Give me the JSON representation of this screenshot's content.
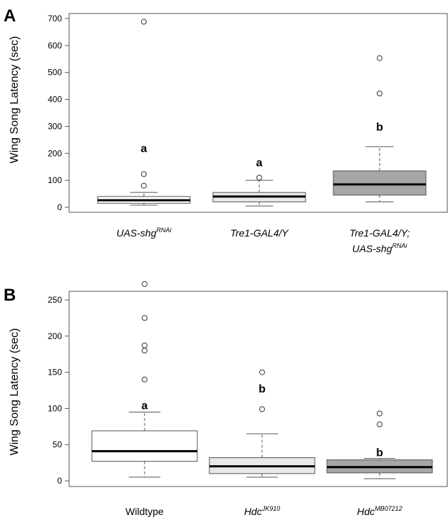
{
  "chart_data": [
    {
      "panel": "A",
      "type": "box",
      "ylabel": "Wing Song Latency (sec)",
      "ylim": [
        0,
        700
      ],
      "yticks": [
        0,
        100,
        200,
        300,
        400,
        500,
        600,
        700
      ],
      "groups": [
        {
          "label_lines": [
            [
              {
                "t": "UAS-shg",
                "sup": "RNAi"
              }
            ]
          ],
          "min": 8,
          "q1": 15,
          "median": 26,
          "q3": 40,
          "max": 55,
          "outliers": [
            80,
            123,
            688
          ],
          "fill": "#ffffff",
          "sig": "a",
          "sig_y": 220
        },
        {
          "label_lines": [
            [
              {
                "t": "Tre1-GAL4/Y",
                "sup": ""
              }
            ]
          ],
          "min": 5,
          "q1": 20,
          "median": 40,
          "q3": 55,
          "max": 100,
          "outliers": [
            110
          ],
          "fill": "#e8e8e8",
          "sig": "a",
          "sig_y": 168
        },
        {
          "label_lines": [
            [
              {
                "t": "Tre1-GAL4/Y;",
                "sup": ""
              }
            ],
            [
              {
                "t": "UAS-shg",
                "sup": "RNAi"
              }
            ]
          ],
          "min": 20,
          "q1": 45,
          "median": 85,
          "q3": 135,
          "max": 225,
          "outliers": [
            422,
            553
          ],
          "fill": "#a6a6a6",
          "sig": "b",
          "sig_y": 300
        }
      ]
    },
    {
      "panel": "B",
      "type": "box",
      "ylabel": "Wing Song Latency (sec)",
      "ylim": [
        0,
        270
      ],
      "yticks": [
        0,
        50,
        100,
        150,
        200,
        250
      ],
      "groups": [
        {
          "label_lines": [
            [
              {
                "t": "Wildtype",
                "sup": ""
              }
            ]
          ],
          "italic": false,
          "min": 5,
          "q1": 27,
          "median": 41,
          "q3": 69,
          "max": 95,
          "outliers": [
            140,
            180,
            187,
            225,
            272
          ],
          "fill": "#ffffff",
          "sig": "a",
          "sig_y": 105
        },
        {
          "label_lines": [
            [
              {
                "t": "Hdc",
                "sup": "JK910"
              }
            ]
          ],
          "min": 5,
          "q1": 10,
          "median": 20,
          "q3": 32,
          "max": 65,
          "outliers": [
            99,
            150
          ],
          "fill": "#e8e8e8",
          "sig": "b",
          "sig_y": 128
        },
        {
          "label_lines": [
            [
              {
                "t": "Hdc",
                "sup": "MB07212"
              }
            ]
          ],
          "min": 3,
          "q1": 11,
          "median": 19,
          "q3": 29,
          "max": 31,
          "outliers": [
            78,
            93
          ],
          "fill": "#a6a6a6",
          "sig": "b",
          "sig_y": 40
        }
      ]
    }
  ]
}
